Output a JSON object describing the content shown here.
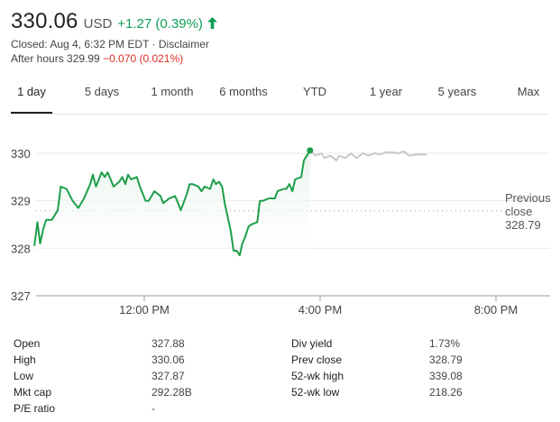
{
  "quote": {
    "price": "330.06",
    "currency": "USD",
    "change": "+1.27 (0.39%)",
    "direction_icon": "up-arrow-icon",
    "closed_line": "Closed: Aug 4, 6:32 PM EDT · Disclaimer",
    "after_hours_label": "After hours 329.99",
    "after_hours_change": "−0.070 (0.021%)"
  },
  "tabs": [
    "1 day",
    "5 days",
    "1 month",
    "6 months",
    "YTD",
    "1 year",
    "5 years",
    "Max"
  ],
  "active_tab": "1 day",
  "colors": {
    "up": "#0f9d58",
    "down": "#d93025",
    "line": "#1e9e4a",
    "after_hours_line": "#c8c8c8",
    "fill": "#e6f4ea"
  },
  "chart_data": {
    "type": "line",
    "title": "",
    "xlabel": "",
    "ylabel": "",
    "x_ticks": [
      "12:00 PM",
      "4:00 PM",
      "8:00 PM"
    ],
    "y_ticks": [
      "330",
      "329",
      "328",
      "327"
    ],
    "ylim": [
      327,
      330.3
    ],
    "previous_close_label": [
      "Previous",
      "close"
    ],
    "previous_close_value": "328.79",
    "previous_close": 328.79,
    "x_unit": "hours since 9:30 AM EDT",
    "series": [
      {
        "session": "regular",
        "points": [
          [
            0.0,
            328.05
          ],
          [
            0.07,
            328.55
          ],
          [
            0.13,
            328.1
          ],
          [
            0.2,
            328.4
          ],
          [
            0.27,
            328.6
          ],
          [
            0.4,
            328.6
          ],
          [
            0.53,
            328.8
          ],
          [
            0.6,
            329.3
          ],
          [
            0.73,
            329.25
          ],
          [
            0.87,
            329.0
          ],
          [
            1.0,
            328.85
          ],
          [
            1.13,
            329.05
          ],
          [
            1.27,
            329.35
          ],
          [
            1.33,
            329.55
          ],
          [
            1.4,
            329.3
          ],
          [
            1.53,
            329.6
          ],
          [
            1.6,
            329.5
          ],
          [
            1.67,
            329.6
          ],
          [
            1.8,
            329.3
          ],
          [
            1.93,
            329.4
          ],
          [
            2.0,
            329.5
          ],
          [
            2.07,
            329.35
          ],
          [
            2.13,
            329.55
          ],
          [
            2.2,
            329.45
          ],
          [
            2.33,
            329.5
          ],
          [
            2.4,
            329.3
          ],
          [
            2.53,
            329.0
          ],
          [
            2.6,
            329.0
          ],
          [
            2.73,
            329.2
          ],
          [
            2.87,
            329.1
          ],
          [
            2.93,
            328.95
          ],
          [
            3.07,
            329.05
          ],
          [
            3.2,
            329.1
          ],
          [
            3.27,
            328.95
          ],
          [
            3.33,
            328.8
          ],
          [
            3.47,
            329.15
          ],
          [
            3.53,
            329.35
          ],
          [
            3.6,
            329.35
          ],
          [
            3.73,
            329.3
          ],
          [
            3.8,
            329.2
          ],
          [
            3.87,
            329.3
          ],
          [
            4.0,
            329.25
          ],
          [
            4.07,
            329.45
          ],
          [
            4.13,
            329.35
          ],
          [
            4.2,
            329.4
          ],
          [
            4.27,
            329.3
          ],
          [
            4.33,
            328.95
          ],
          [
            4.4,
            328.65
          ],
          [
            4.47,
            328.35
          ],
          [
            4.53,
            327.95
          ],
          [
            4.6,
            327.95
          ],
          [
            4.67,
            327.85
          ],
          [
            4.73,
            328.1
          ],
          [
            4.8,
            328.25
          ],
          [
            4.87,
            328.45
          ],
          [
            4.93,
            328.5
          ],
          [
            5.07,
            328.55
          ],
          [
            5.13,
            329.0
          ],
          [
            5.2,
            329.0
          ],
          [
            5.33,
            329.05
          ],
          [
            5.47,
            329.05
          ],
          [
            5.53,
            329.2
          ],
          [
            5.67,
            329.25
          ],
          [
            5.73,
            329.25
          ],
          [
            5.8,
            329.35
          ],
          [
            5.87,
            329.2
          ],
          [
            5.93,
            329.45
          ],
          [
            6.07,
            329.5
          ],
          [
            6.13,
            329.85
          ],
          [
            6.27,
            330.06
          ]
        ]
      },
      {
        "session": "after_hours",
        "points": [
          [
            6.27,
            330.06
          ],
          [
            6.4,
            329.95
          ],
          [
            6.53,
            330.0
          ],
          [
            6.6,
            329.9
          ],
          [
            6.73,
            329.95
          ],
          [
            6.87,
            329.85
          ],
          [
            6.93,
            329.95
          ],
          [
            7.07,
            329.9
          ],
          [
            7.2,
            330.0
          ],
          [
            7.33,
            329.9
          ],
          [
            7.47,
            330.0
          ],
          [
            7.6,
            329.95
          ],
          [
            7.73,
            330.0
          ],
          [
            7.87,
            329.98
          ],
          [
            8.0,
            330.02
          ],
          [
            8.13,
            330.02
          ],
          [
            8.27,
            330.0
          ],
          [
            8.4,
            330.04
          ],
          [
            8.53,
            329.95
          ],
          [
            8.67,
            329.97
          ],
          [
            8.8,
            329.98
          ],
          [
            8.93,
            329.97
          ]
        ]
      }
    ]
  },
  "stats": [
    {
      "label": "Open",
      "value": "327.88",
      "label2": "Div yield",
      "value2": "1.73%"
    },
    {
      "label": "High",
      "value": "330.06",
      "label2": "Prev close",
      "value2": "328.79"
    },
    {
      "label": "Low",
      "value": "327.87",
      "label2": "52-wk high",
      "value2": "339.08"
    },
    {
      "label": "Mkt cap",
      "value": "292.28B",
      "label2": "52-wk low",
      "value2": "218.26"
    },
    {
      "label": "P/E ratio",
      "value": "-",
      "label2": "",
      "value2": ""
    }
  ]
}
